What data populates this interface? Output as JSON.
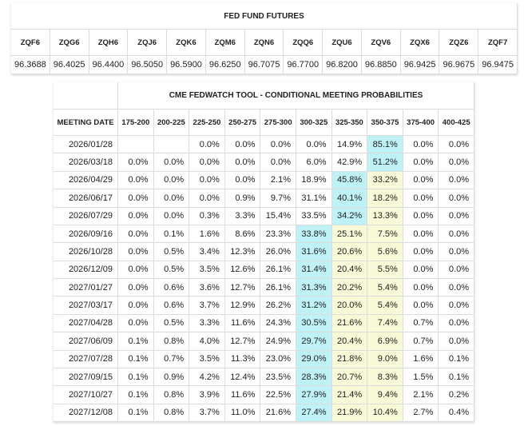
{
  "futures": {
    "title": "FED FUND FUTURES",
    "columns": [
      "ZQF6",
      "ZQG6",
      "ZQH6",
      "ZQJ6",
      "ZQK6",
      "ZQM6",
      "ZQN6",
      "ZQQ6",
      "ZQU6",
      "ZQV6",
      "ZQX6",
      "ZQZ6",
      "ZQF7"
    ],
    "values": [
      "96.3688",
      "96.4025",
      "96.4400",
      "96.5050",
      "96.5900",
      "96.6250",
      "96.7075",
      "96.7700",
      "96.8200",
      "96.8850",
      "96.9425",
      "96.9675",
      "96.9475"
    ]
  },
  "probabilities": {
    "title": "CME FEDWATCH TOOL - CONDITIONAL MEETING PROBABILITIES",
    "date_header": "MEETING DATE",
    "columns": [
      "175-200",
      "200-225",
      "225-250",
      "250-275",
      "275-300",
      "300-325",
      "325-350",
      "350-375",
      "375-400",
      "400-425"
    ],
    "rows": [
      {
        "date": "2026/01/28",
        "cells": [
          null,
          null,
          "0.0%",
          "0.0%",
          "0.0%",
          "0.0%",
          "14.9%",
          "85.1%",
          "0.0%",
          "0.0%"
        ],
        "fills": [
          null,
          null,
          null,
          null,
          null,
          null,
          null,
          "#bff2f7",
          null,
          null
        ]
      },
      {
        "date": "2026/03/18",
        "cells": [
          "0.0%",
          "0.0%",
          "0.0%",
          "0.0%",
          "0.0%",
          "6.0%",
          "42.9%",
          "51.2%",
          "0.0%",
          "0.0%"
        ],
        "fills": [
          null,
          null,
          null,
          null,
          null,
          null,
          null,
          "#bff2f7",
          null,
          null
        ]
      },
      {
        "date": "2026/04/29",
        "cells": [
          "0.0%",
          "0.0%",
          "0.0%",
          "0.0%",
          "2.1%",
          "18.9%",
          "45.8%",
          "33.2%",
          "0.0%",
          "0.0%"
        ],
        "fills": [
          null,
          null,
          null,
          null,
          null,
          null,
          "#bff2f7",
          "#f8f9d6",
          null,
          null
        ]
      },
      {
        "date": "2026/06/17",
        "cells": [
          "0.0%",
          "0.0%",
          "0.0%",
          "0.9%",
          "9.7%",
          "31.1%",
          "40.1%",
          "18.2%",
          "0.0%",
          "0.0%"
        ],
        "fills": [
          null,
          null,
          null,
          null,
          null,
          null,
          "#bff2f7",
          "#f8f9d6",
          null,
          null
        ]
      },
      {
        "date": "2026/07/29",
        "cells": [
          "0.0%",
          "0.0%",
          "0.3%",
          "3.3%",
          "15.4%",
          "33.5%",
          "34.2%",
          "13.3%",
          "0.0%",
          "0.0%"
        ],
        "fills": [
          null,
          null,
          null,
          null,
          null,
          null,
          "#bff2f7",
          "#f8f9d6",
          null,
          null
        ]
      },
      {
        "date": "2026/09/16",
        "cells": [
          "0.0%",
          "0.1%",
          "1.6%",
          "8.6%",
          "23.3%",
          "33.8%",
          "25.1%",
          "7.5%",
          "0.0%",
          "0.0%"
        ],
        "fills": [
          null,
          null,
          null,
          null,
          null,
          "#bff2f7",
          "#f8f9d6",
          "#f8f9d6",
          null,
          null
        ]
      },
      {
        "date": "2026/10/28",
        "cells": [
          "0.0%",
          "0.5%",
          "3.4%",
          "12.3%",
          "26.0%",
          "31.6%",
          "20.6%",
          "5.6%",
          "0.0%",
          "0.0%"
        ],
        "fills": [
          null,
          null,
          null,
          null,
          null,
          "#bff2f7",
          "#f8f9d6",
          "#f8f9d6",
          null,
          null
        ]
      },
      {
        "date": "2026/12/09",
        "cells": [
          "0.0%",
          "0.5%",
          "3.5%",
          "12.6%",
          "26.1%",
          "31.4%",
          "20.4%",
          "5.5%",
          "0.0%",
          "0.0%"
        ],
        "fills": [
          null,
          null,
          null,
          null,
          null,
          "#bff2f7",
          "#f8f9d6",
          "#f8f9d6",
          null,
          null
        ]
      },
      {
        "date": "2027/01/27",
        "cells": [
          "0.0%",
          "0.6%",
          "3.6%",
          "12.7%",
          "26.1%",
          "31.3%",
          "20.2%",
          "5.4%",
          "0.0%",
          "0.0%"
        ],
        "fills": [
          null,
          null,
          null,
          null,
          null,
          "#bff2f7",
          "#f8f9d6",
          "#f8f9d6",
          null,
          null
        ]
      },
      {
        "date": "2027/03/17",
        "cells": [
          "0.0%",
          "0.6%",
          "3.7%",
          "12.9%",
          "26.2%",
          "31.2%",
          "20.0%",
          "5.4%",
          "0.0%",
          "0.0%"
        ],
        "fills": [
          null,
          null,
          null,
          null,
          null,
          "#bff2f7",
          "#f8f9d6",
          "#f8f9d6",
          null,
          null
        ]
      },
      {
        "date": "2027/04/28",
        "cells": [
          "0.0%",
          "0.5%",
          "3.3%",
          "11.6%",
          "24.3%",
          "30.5%",
          "21.6%",
          "7.4%",
          "0.7%",
          "0.0%"
        ],
        "fills": [
          null,
          null,
          null,
          null,
          null,
          "#bff2f7",
          "#f8f9d6",
          "#f8f9d6",
          null,
          null
        ]
      },
      {
        "date": "2027/06/09",
        "cells": [
          "0.1%",
          "0.8%",
          "4.0%",
          "12.7%",
          "24.9%",
          "29.7%",
          "20.4%",
          "6.9%",
          "0.7%",
          "0.0%"
        ],
        "fills": [
          null,
          null,
          null,
          null,
          null,
          "#bff2f7",
          "#f8f9d6",
          "#f8f9d6",
          null,
          null
        ]
      },
      {
        "date": "2027/07/28",
        "cells": [
          "0.1%",
          "0.7%",
          "3.5%",
          "11.3%",
          "23.0%",
          "29.0%",
          "21.8%",
          "9.0%",
          "1.6%",
          "0.1%"
        ],
        "fills": [
          null,
          null,
          null,
          null,
          null,
          "#bff2f7",
          "#f8f9d6",
          "#f8f9d6",
          null,
          null
        ]
      },
      {
        "date": "2027/09/15",
        "cells": [
          "0.1%",
          "0.9%",
          "4.2%",
          "12.4%",
          "23.5%",
          "28.3%",
          "20.7%",
          "8.3%",
          "1.5%",
          "0.1%"
        ],
        "fills": [
          null,
          null,
          null,
          null,
          null,
          "#bff2f7",
          "#f8f9d6",
          "#f8f9d6",
          null,
          null
        ]
      },
      {
        "date": "2027/10/27",
        "cells": [
          "0.1%",
          "0.8%",
          "3.9%",
          "11.6%",
          "22.5%",
          "27.9%",
          "21.4%",
          "9.4%",
          "2.1%",
          "0.2%"
        ],
        "fills": [
          null,
          null,
          null,
          null,
          null,
          "#bff2f7",
          "#f8f9d6",
          "#f8f9d6",
          null,
          null
        ]
      },
      {
        "date": "2027/12/08",
        "cells": [
          "0.1%",
          "0.8%",
          "3.7%",
          "11.0%",
          "21.6%",
          "27.4%",
          "21.9%",
          "10.4%",
          "2.7%",
          "0.4%"
        ],
        "fills": [
          null,
          null,
          null,
          null,
          null,
          "#bff2f7",
          "#f8f9d6",
          "#f8f9d6",
          null,
          null
        ]
      }
    ]
  }
}
